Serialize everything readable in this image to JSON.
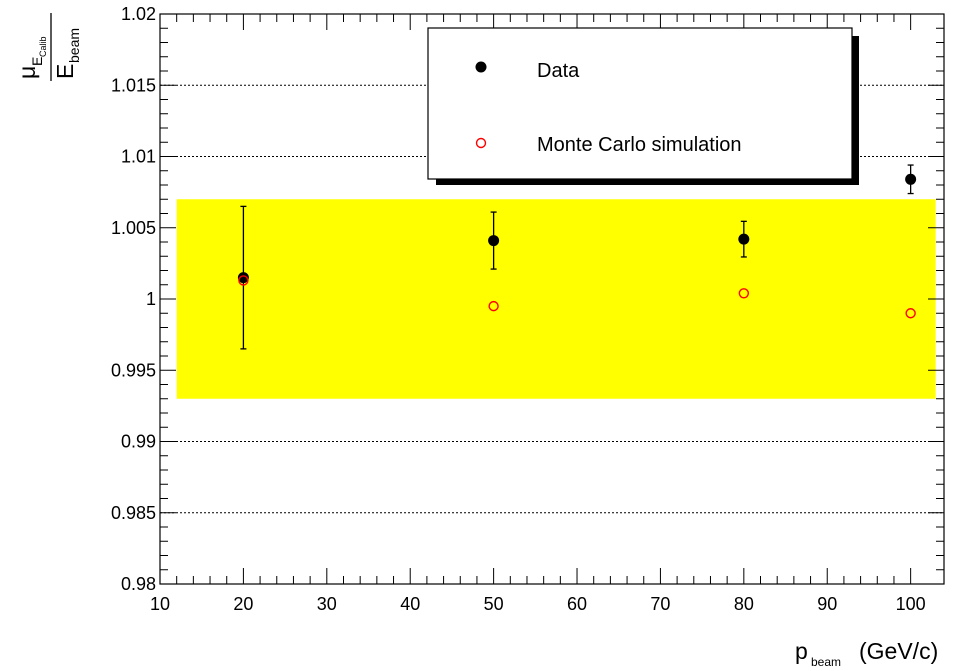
{
  "chart_data": {
    "type": "scatter",
    "xlabel_main": "p",
    "xlabel_sub": "beam",
    "xlabel_unit": "(GeV/c)",
    "ylabel_mu": "μ",
    "ylabel_sub_E": "E",
    "ylabel_sub_sub": "Calib",
    "ylabel_den": "E",
    "ylabel_den_sub": "beam",
    "xlim": [
      10,
      104
    ],
    "ylim": [
      0.98,
      1.02
    ],
    "x_ticks": [
      10,
      20,
      30,
      40,
      50,
      60,
      70,
      80,
      90,
      100
    ],
    "x_tick_labels": [
      "10",
      "20",
      "30",
      "40",
      "50",
      "60",
      "70",
      "80",
      "90",
      "100"
    ],
    "y_ticks": [
      0.98,
      0.985,
      0.99,
      0.995,
      1.0,
      1.005,
      1.01,
      1.015,
      1.02
    ],
    "y_tick_labels": [
      "0.98",
      "0.985",
      "0.99",
      "0.995",
      "1",
      "1.005",
      "1.01",
      "1.015",
      "1.02"
    ],
    "grid_y": [
      0.985,
      0.99,
      1.01,
      1.015
    ],
    "band": {
      "x": [
        12,
        103
      ],
      "y": [
        0.993,
        1.007
      ],
      "color": "#ffff00"
    },
    "series": [
      {
        "name": "Data",
        "marker": "filled-circle",
        "color": "#000000",
        "x": [
          20,
          50,
          80,
          100
        ],
        "y": [
          1.0015,
          1.0041,
          1.0042,
          1.0084
        ],
        "yerr": [
          0.005,
          0.002,
          0.00125,
          0.001
        ]
      },
      {
        "name": "Monte Carlo simulation",
        "marker": "open-circle",
        "color": "#ff0000",
        "x": [
          20,
          50,
          80,
          100
        ],
        "y": [
          1.0013,
          0.9995,
          1.0004,
          0.999
        ]
      }
    ],
    "legend_position": "top-right"
  }
}
